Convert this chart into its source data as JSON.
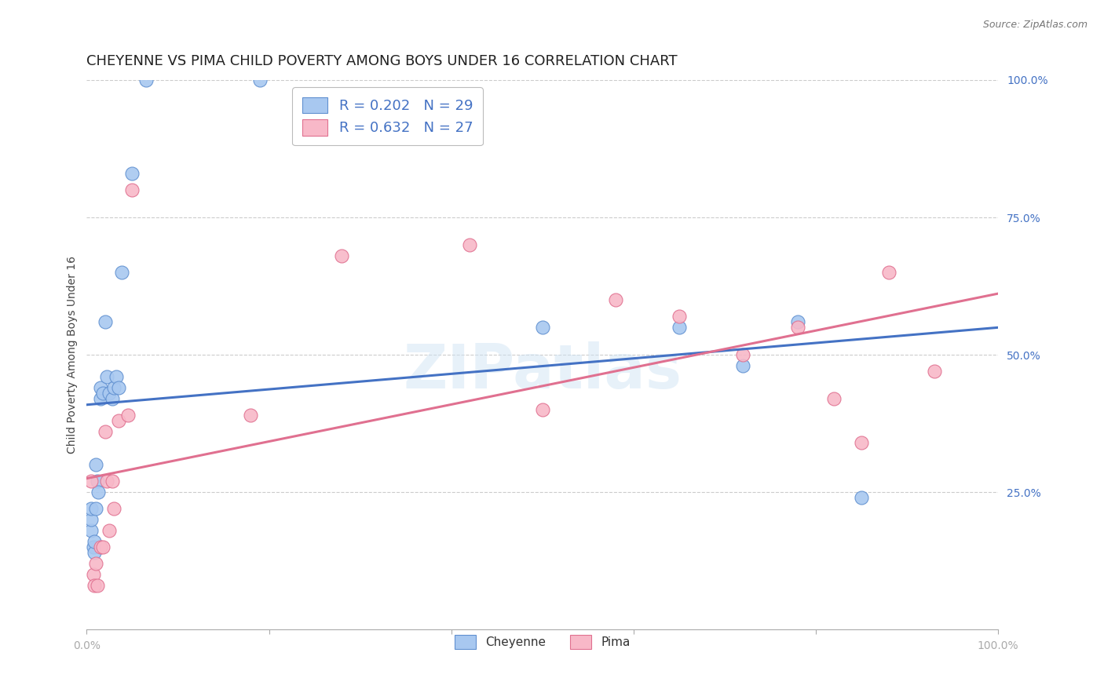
{
  "title": "CHEYENNE VS PIMA CHILD POVERTY AMONG BOYS UNDER 16 CORRELATION CHART",
  "source": "Source: ZipAtlas.com",
  "ylabel": "Child Poverty Among Boys Under 16",
  "watermark": "ZIPatlas",
  "cheyenne_x": [
    0.005,
    0.005,
    0.005,
    0.007,
    0.008,
    0.008,
    0.01,
    0.01,
    0.012,
    0.013,
    0.015,
    0.015,
    0.018,
    0.02,
    0.022,
    0.025,
    0.028,
    0.03,
    0.032,
    0.035,
    0.038,
    0.05,
    0.065,
    0.19,
    0.5,
    0.65,
    0.78,
    0.85,
    0.72
  ],
  "cheyenne_y": [
    0.18,
    0.2,
    0.22,
    0.15,
    0.14,
    0.16,
    0.3,
    0.22,
    0.27,
    0.25,
    0.42,
    0.44,
    0.43,
    0.56,
    0.46,
    0.43,
    0.42,
    0.44,
    0.46,
    0.44,
    0.65,
    0.83,
    1.0,
    1.0,
    0.55,
    0.55,
    0.56,
    0.24,
    0.48
  ],
  "pima_x": [
    0.005,
    0.007,
    0.008,
    0.01,
    0.012,
    0.015,
    0.018,
    0.02,
    0.022,
    0.025,
    0.028,
    0.03,
    0.035,
    0.045,
    0.05,
    0.18,
    0.28,
    0.42,
    0.5,
    0.58,
    0.65,
    0.72,
    0.78,
    0.82,
    0.85,
    0.88,
    0.93
  ],
  "pima_y": [
    0.27,
    0.1,
    0.08,
    0.12,
    0.08,
    0.15,
    0.15,
    0.36,
    0.27,
    0.18,
    0.27,
    0.22,
    0.38,
    0.39,
    0.8,
    0.39,
    0.68,
    0.7,
    0.4,
    0.6,
    0.57,
    0.5,
    0.55,
    0.42,
    0.34,
    0.65,
    0.47
  ],
  "cheyenne_color": "#a8c8f0",
  "pima_color": "#f8b8c8",
  "cheyenne_edge_color": "#6090d0",
  "pima_edge_color": "#e07090",
  "cheyenne_line_color": "#4472c4",
  "pima_line_color": "#e07090",
  "background_color": "#ffffff",
  "grid_color": "#cccccc",
  "R_cheyenne": 0.202,
  "N_cheyenne": 29,
  "R_pima": 0.632,
  "N_pima": 27,
  "xlim": [
    0.0,
    1.0
  ],
  "ylim": [
    0.0,
    1.0
  ],
  "yticks": [
    0.0,
    0.25,
    0.5,
    0.75,
    1.0
  ],
  "ytick_labels": [
    "",
    "25.0%",
    "50.0%",
    "75.0%",
    "100.0%"
  ]
}
